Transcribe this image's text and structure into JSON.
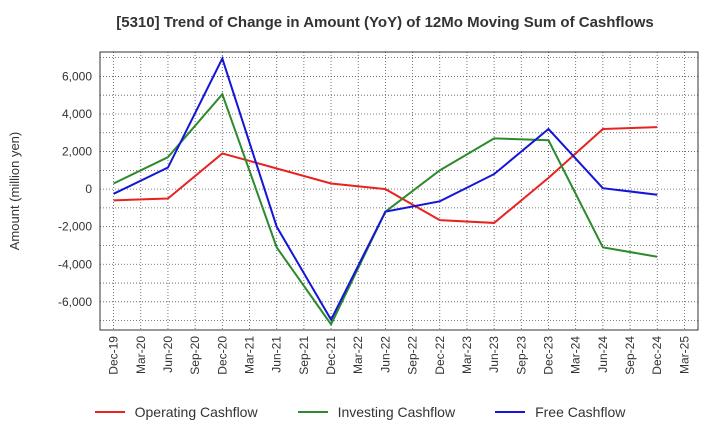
{
  "chart_data": {
    "type": "line",
    "title": "[5310]  Trend of Change in Amount (YoY) of 12Mo Moving Sum of Cashflows",
    "xlabel": "",
    "ylabel": "Amount (million yen)",
    "ylim": [
      -7500,
      7300
    ],
    "yticks": [
      6000,
      4000,
      2000,
      0,
      -2000,
      -4000,
      -6000
    ],
    "ytick_labels": [
      "6,000",
      "4,000",
      "2,000",
      "0",
      "-2,000",
      "-4,000",
      "-6,000"
    ],
    "categories": [
      "Dec-19",
      "Mar-20",
      "Jun-20",
      "Sep-20",
      "Dec-20",
      "Mar-21",
      "Jun-21",
      "Sep-21",
      "Dec-21",
      "Mar-22",
      "Jun-22",
      "Sep-22",
      "Dec-22",
      "Mar-23",
      "Jun-23",
      "Sep-23",
      "Dec-23",
      "Mar-24",
      "Jun-24",
      "Sep-24",
      "Dec-24",
      "Mar-25"
    ],
    "grid": true,
    "legend_position": "bottom",
    "series": [
      {
        "name": "Operating Cashflow",
        "color": "#e8231f",
        "points": [
          [
            "Dec-19",
            -600
          ],
          [
            "Jun-20",
            -500
          ],
          [
            "Dec-20",
            1900
          ],
          [
            "Dec-21",
            300
          ],
          [
            "Jun-22",
            0
          ],
          [
            "Dec-22",
            -1650
          ],
          [
            "Jun-23",
            -1800
          ],
          [
            "Dec-23",
            600
          ],
          [
            "Jun-24",
            3200
          ],
          [
            "Dec-24",
            3300
          ]
        ]
      },
      {
        "name": "Investing Cashflow",
        "color": "#2d8a2d",
        "points": [
          [
            "Dec-19",
            300
          ],
          [
            "Jun-20",
            1700
          ],
          [
            "Dec-20",
            5050
          ],
          [
            "Jun-21",
            -3100
          ],
          [
            "Dec-21",
            -7200
          ],
          [
            "Jun-22",
            -1200
          ],
          [
            "Dec-22",
            1000
          ],
          [
            "Jun-23",
            2700
          ],
          [
            "Dec-23",
            2600
          ],
          [
            "Jun-24",
            -3100
          ],
          [
            "Dec-24",
            -3600
          ]
        ]
      },
      {
        "name": "Free Cashflow",
        "color": "#1515d8",
        "points": [
          [
            "Dec-19",
            -250
          ],
          [
            "Jun-20",
            1150
          ],
          [
            "Dec-20",
            6950
          ],
          [
            "Jun-21",
            -2000
          ],
          [
            "Dec-21",
            -6950
          ],
          [
            "Jun-22",
            -1200
          ],
          [
            "Dec-22",
            -650
          ],
          [
            "Jun-23",
            800
          ],
          [
            "Dec-23",
            3200
          ],
          [
            "Jun-24",
            50
          ],
          [
            "Dec-24",
            -300
          ]
        ]
      }
    ]
  }
}
